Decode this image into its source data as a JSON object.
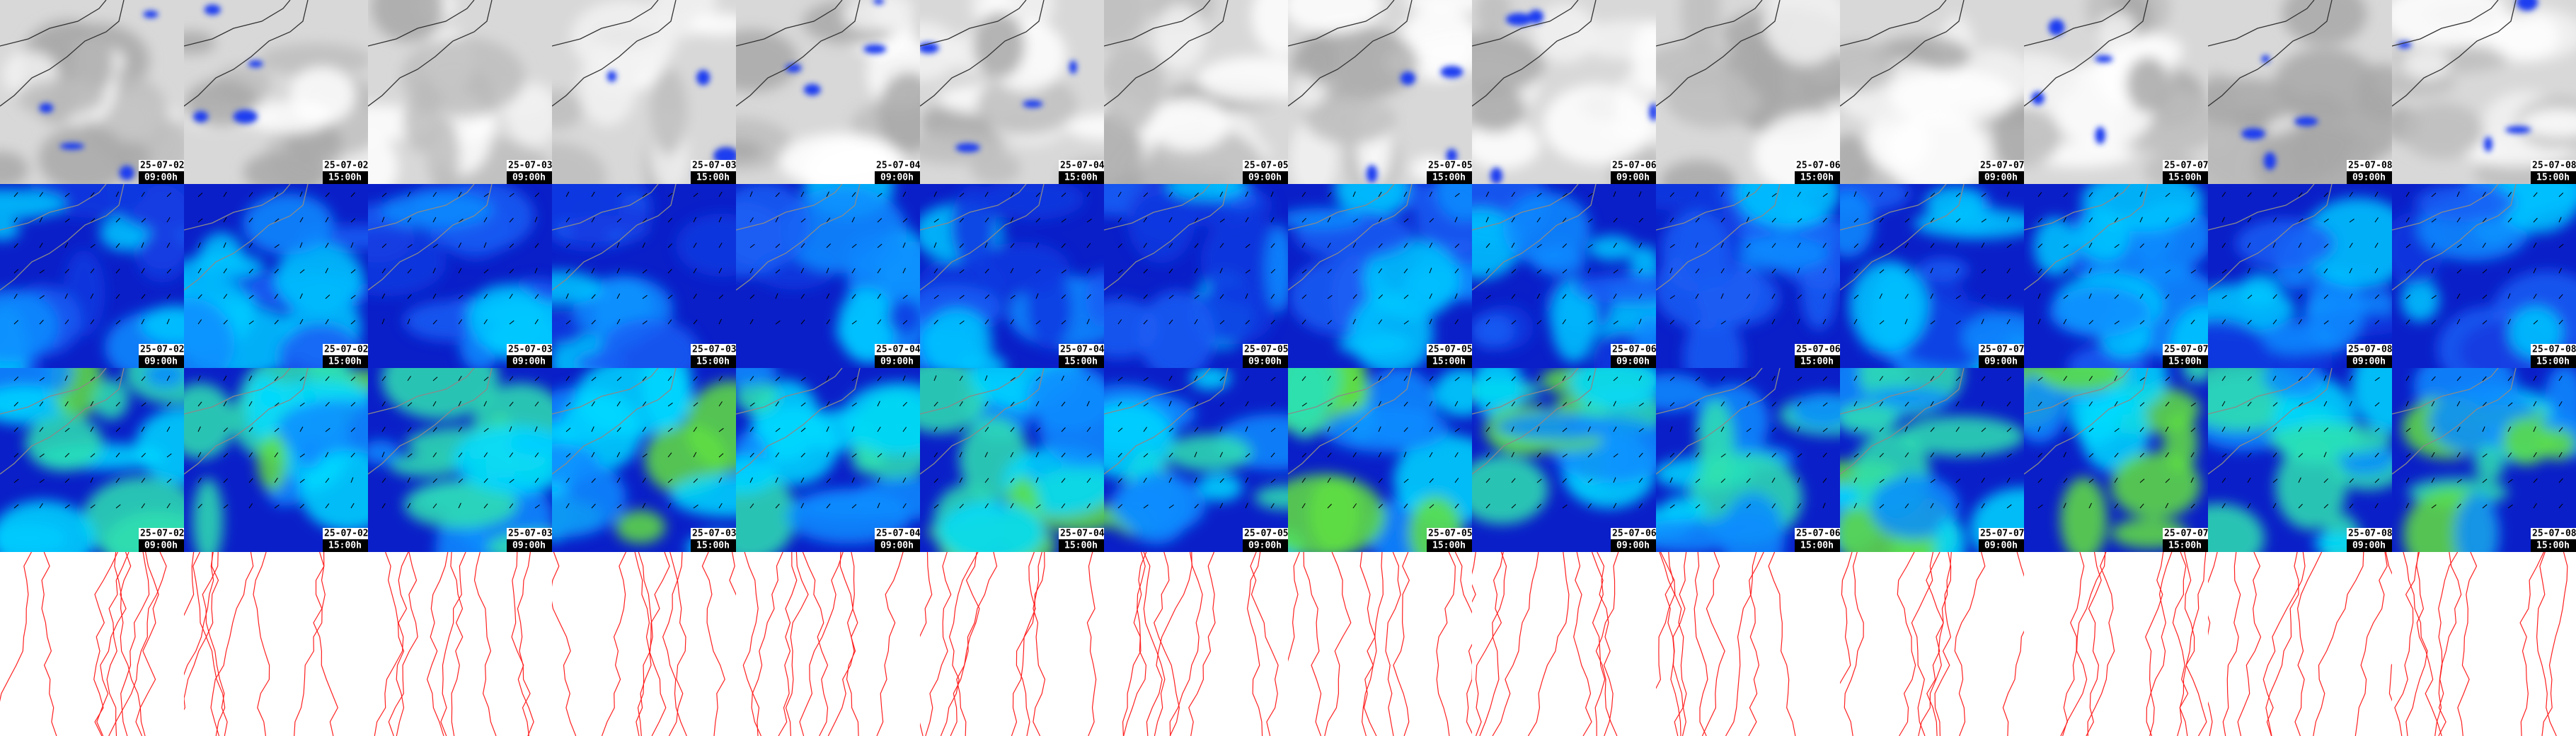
{
  "columns": [
    {
      "date": "25-07-02",
      "time": "09:00h"
    },
    {
      "date": "25-07-02",
      "time": "15:00h"
    },
    {
      "date": "25-07-03",
      "time": "09:00h"
    },
    {
      "date": "25-07-03",
      "time": "15:00h"
    },
    {
      "date": "25-07-04",
      "time": "09:00h"
    },
    {
      "date": "25-07-04",
      "time": "15:00h"
    },
    {
      "date": "25-07-05",
      "time": "09:00h"
    },
    {
      "date": "25-07-05",
      "time": "15:00h"
    },
    {
      "date": "25-07-06",
      "time": "09:00h"
    },
    {
      "date": "25-07-06",
      "time": "15:00h"
    },
    {
      "date": "25-07-07",
      "time": "09:00h"
    },
    {
      "date": "25-07-07",
      "time": "15:00h"
    },
    {
      "date": "25-07-08",
      "time": "09:00h"
    },
    {
      "date": "25-07-08",
      "time": "15:00h"
    }
  ]
}
